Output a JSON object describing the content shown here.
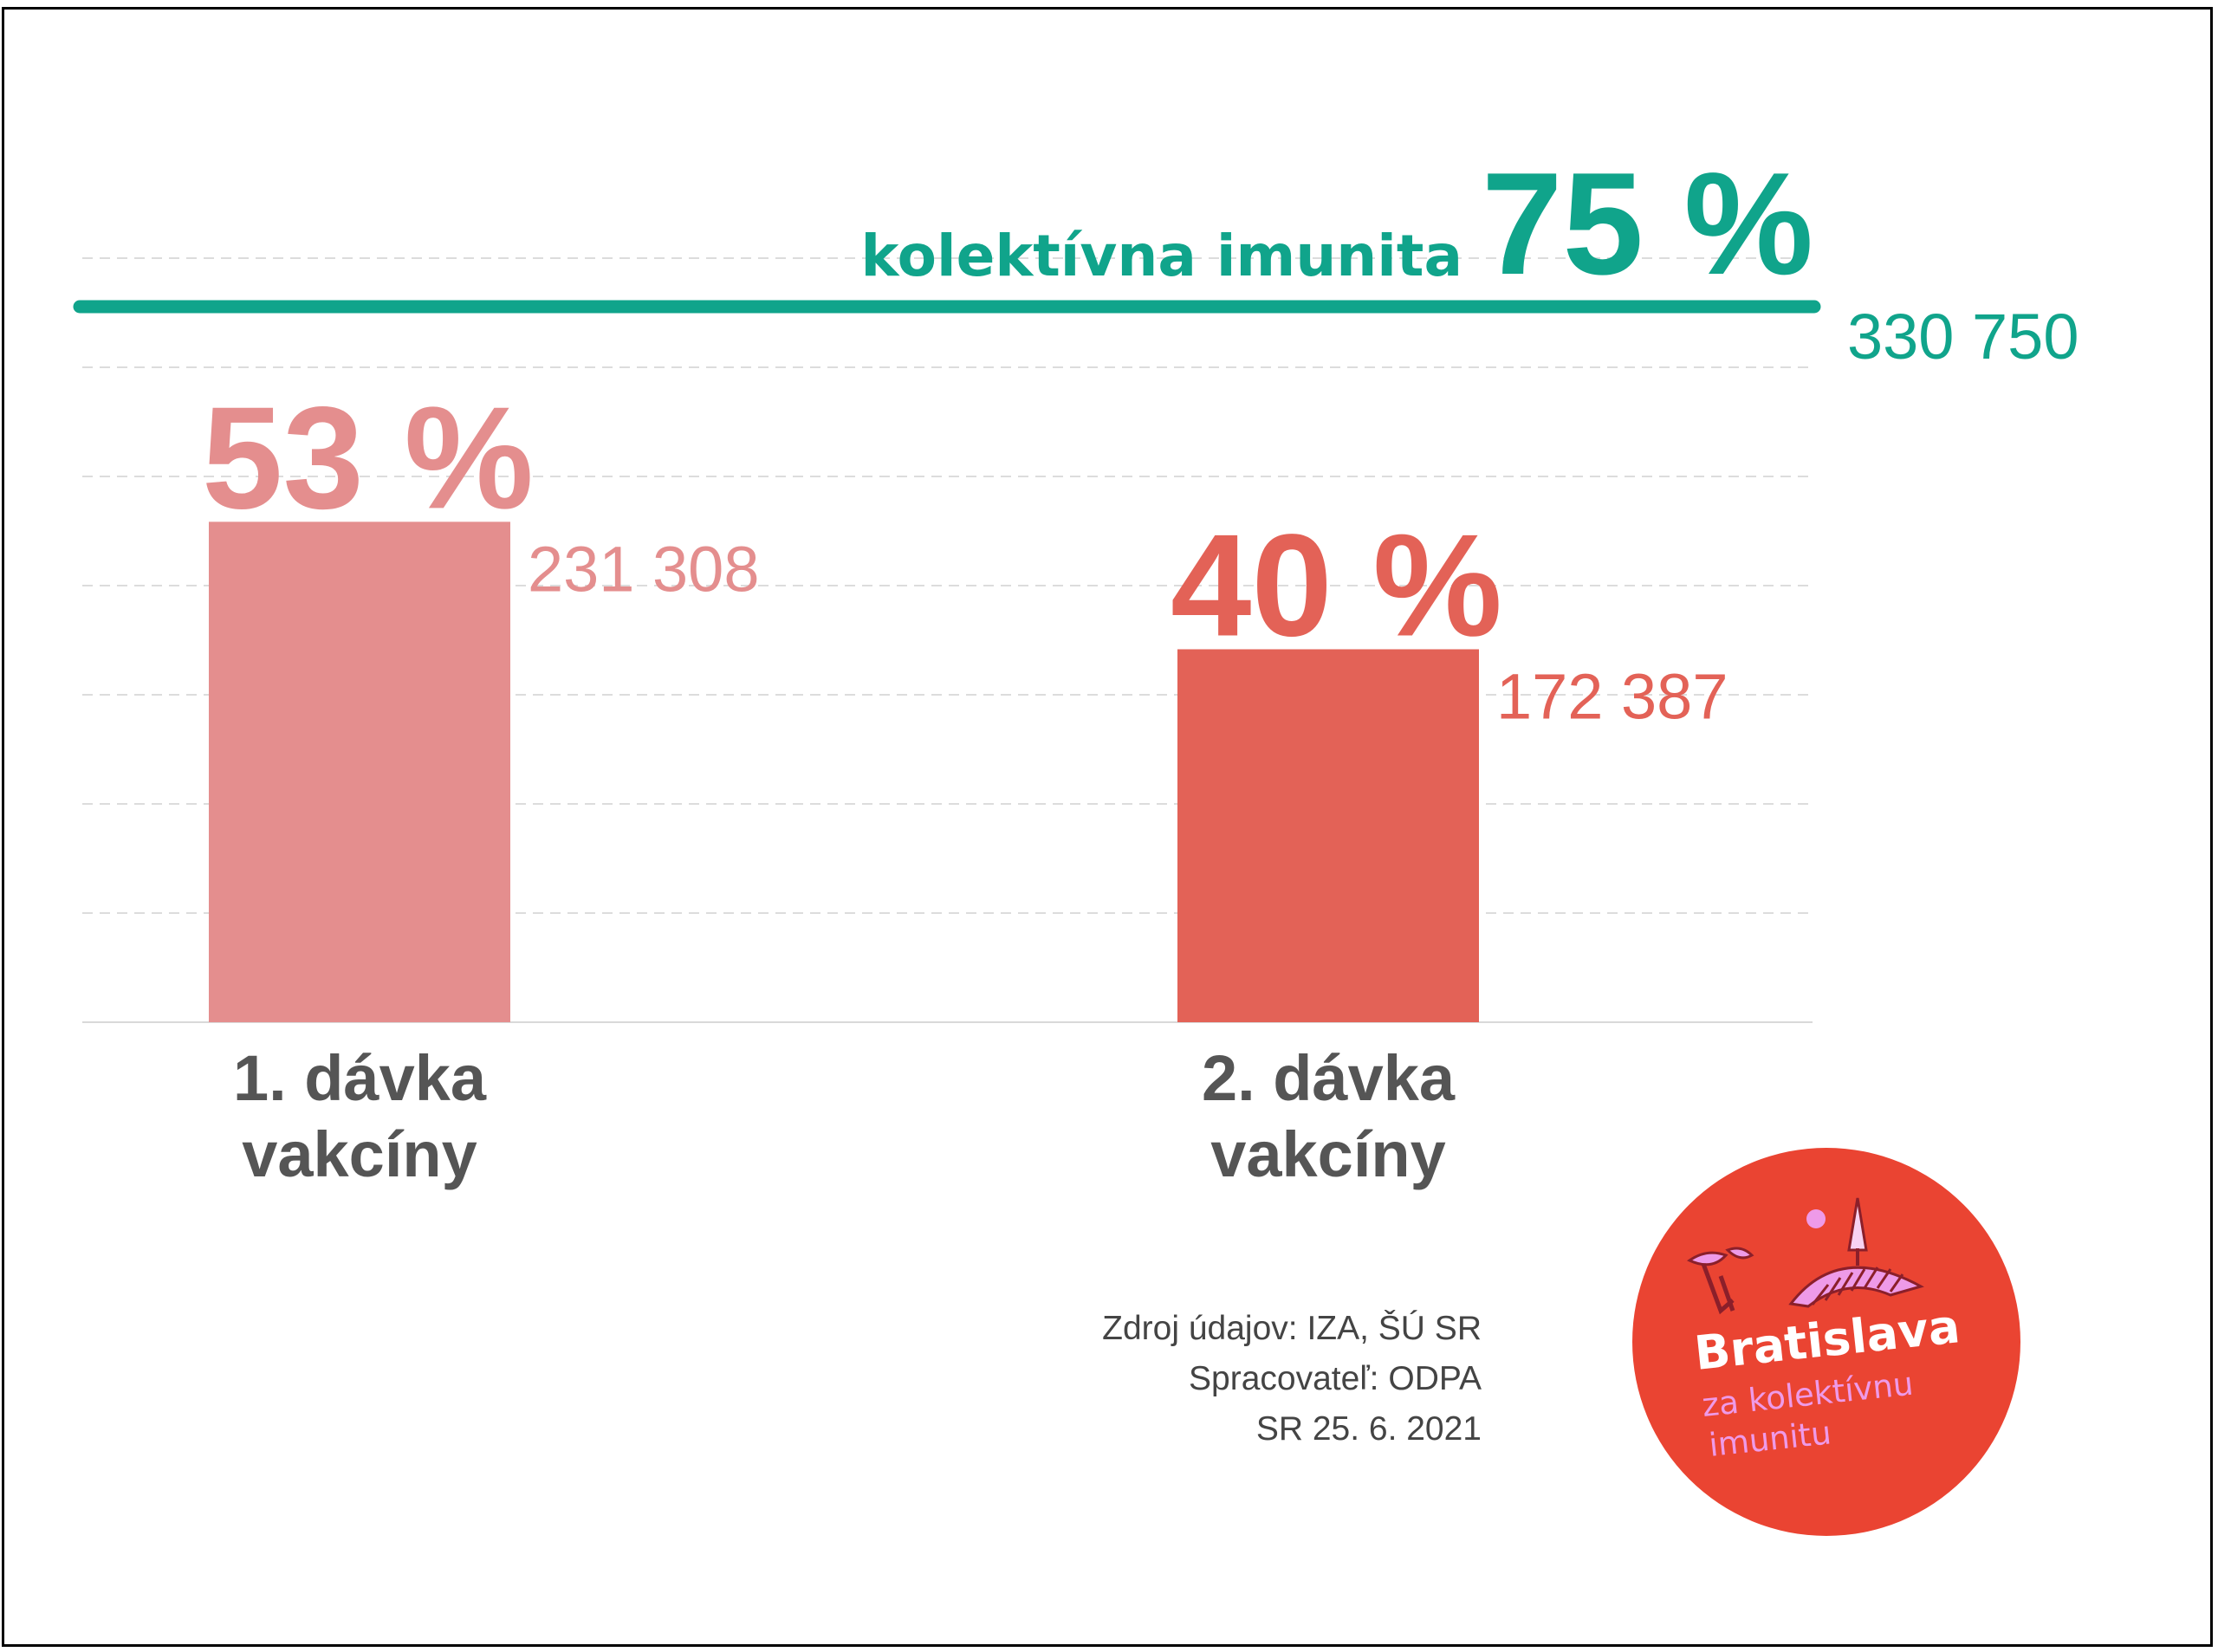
{
  "chart_data": {
    "type": "bar",
    "categories": [
      [
        "1. dávka",
        "vakcíny"
      ],
      [
        "2. dávka",
        "vakcíny"
      ]
    ],
    "series": [
      {
        "percent_labels": [
          "53 %",
          "40 %"
        ],
        "values": [
          231308,
          172387
        ],
        "value_labels": [
          "231 308",
          "172 387"
        ],
        "colors": [
          "#e48e8e",
          "#e36257"
        ]
      }
    ],
    "target": {
      "label": "kolektívna imunita",
      "percent_label": "75 %",
      "value": 330750,
      "value_label": "330 750",
      "color": "#10a48b"
    },
    "ylim": [
      0,
      330750
    ],
    "grid": true
  },
  "source": {
    "line1": "Zdroj údajov:  IZA, ŠÚ SR",
    "line2": "Spracovateľ: ODPA",
    "line3": "SR 25. 6. 2021"
  },
  "badge": {
    "title": "Bratislava",
    "line1": "za kolektívnu",
    "line2": "imunitu",
    "colors": {
      "circle": "#ea4432",
      "accent": "#ee9ae8",
      "dark": "#8b1f2a"
    }
  }
}
